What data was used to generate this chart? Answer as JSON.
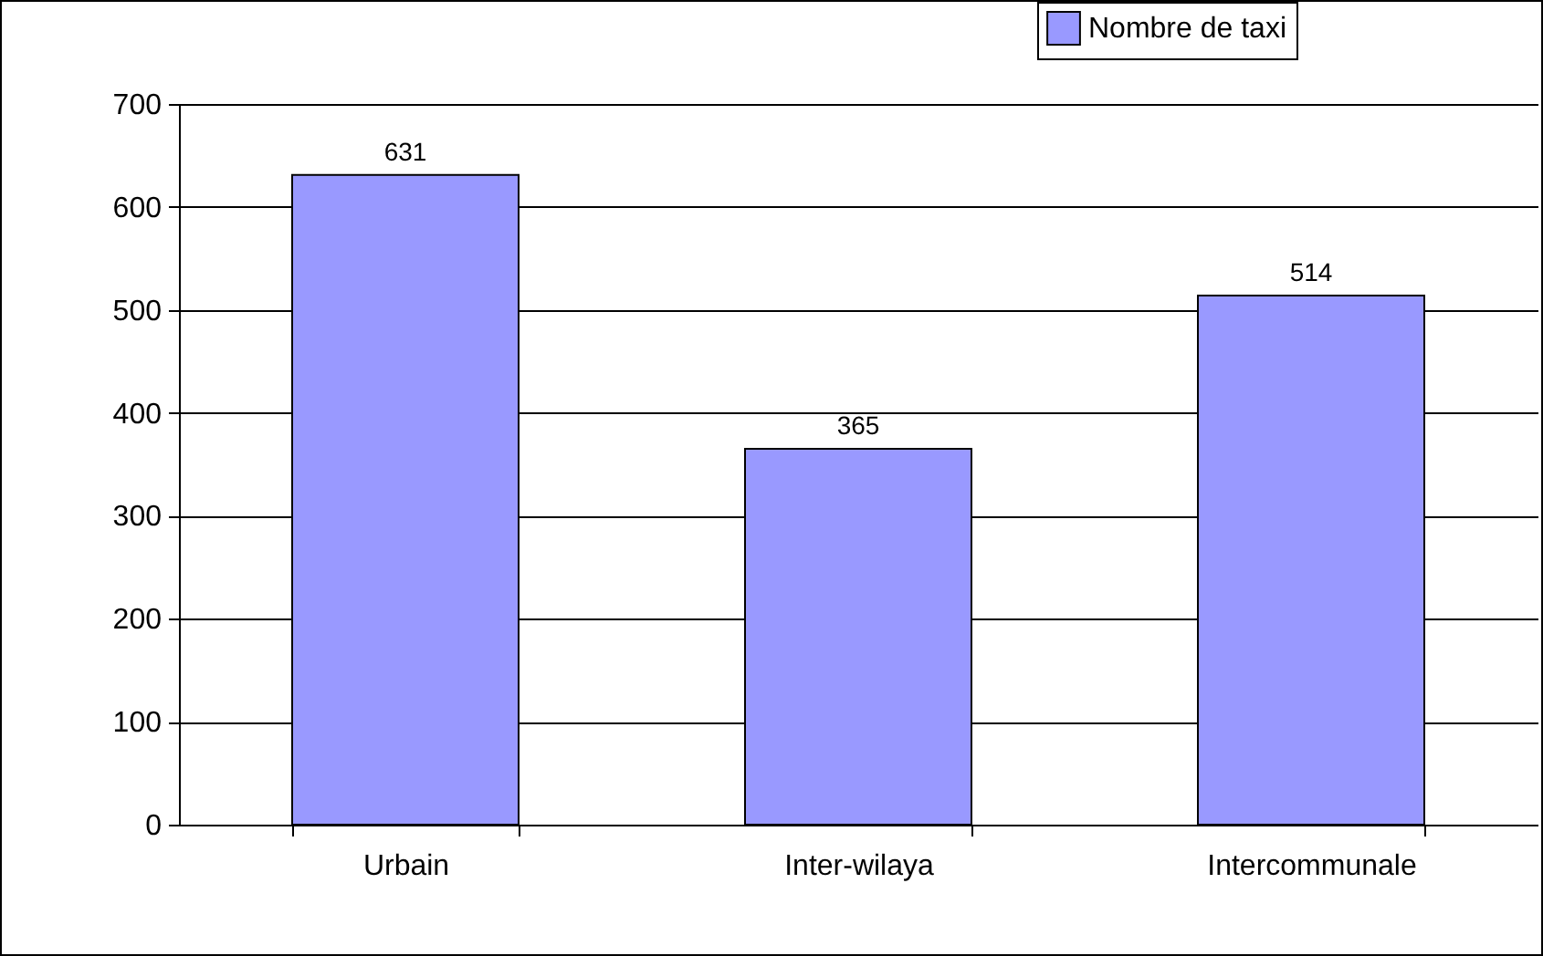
{
  "chart_data": {
    "type": "bar",
    "categories": [
      "Urbain",
      "Inter-wilaya",
      "Intercommunale"
    ],
    "series": [
      {
        "name": "Nombre de taxi",
        "color": "#9999ff",
        "values": [
          631,
          365,
          514
        ]
      }
    ],
    "ylim": [
      0,
      700
    ],
    "yticks": [
      0,
      100,
      200,
      300,
      400,
      500,
      600,
      700
    ],
    "grid": "y",
    "legend": "top right",
    "data_labels": true
  }
}
